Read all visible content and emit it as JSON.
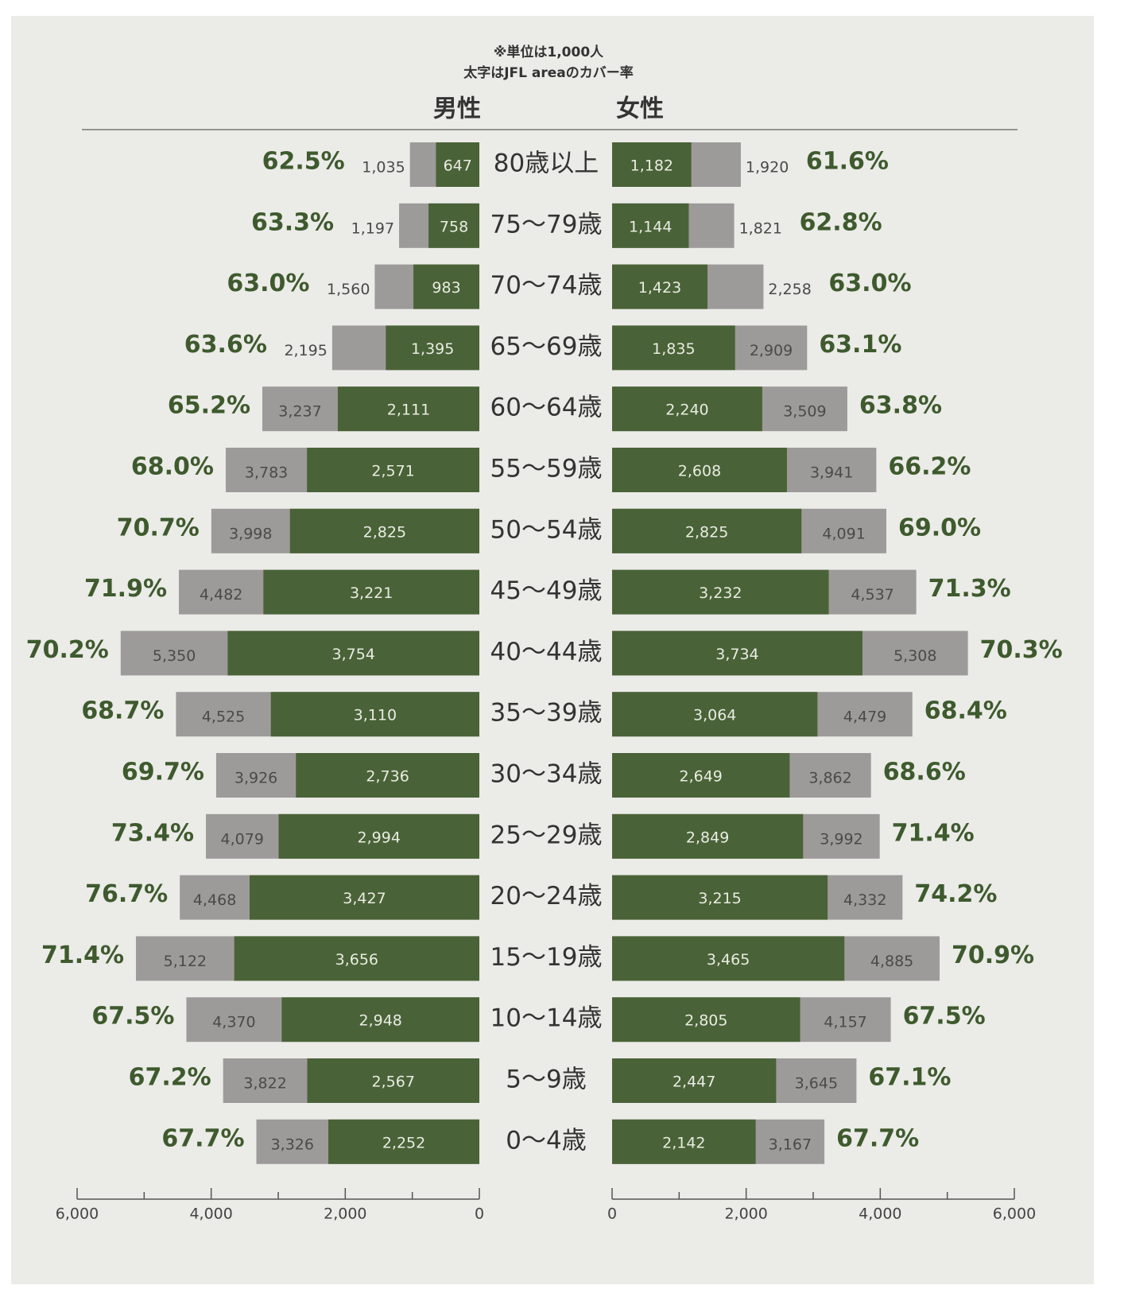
{
  "chart_data": {
    "type": "pyramid",
    "notes": [
      "※単位は1,000人",
      "太字はJFL areaのカバー率"
    ],
    "categories": [
      "80歳以上",
      "75～79歳",
      "70～74歳",
      "65～69歳",
      "60～64歳",
      "55～59歳",
      "50～54歳",
      "45～49歳",
      "40～44歳",
      "35～39歳",
      "30～34歳",
      "25～29歳",
      "20～24歳",
      "15～19歳",
      "10～14歳",
      "5～9歳",
      "0～4歳"
    ],
    "total_color": "#9d9b99",
    "cover_color": "#4a6237",
    "xlim": [
      0,
      6000
    ],
    "xticks": [
      0,
      {
        "value": 2000,
        "label": "2,000"
      },
      {
        "value": 4000,
        "label": "4,000"
      },
      {
        "value": 6000,
        "label": "6,000"
      }
    ],
    "minor_xticks": [
      1000,
      3000,
      5000
    ],
    "series": [
      {
        "name": "男性",
        "side": "left",
        "total": [
          1035,
          1197,
          1560,
          2195,
          3237,
          3783,
          3998,
          4482,
          5350,
          4525,
          3926,
          4079,
          4468,
          5122,
          4370,
          3822,
          3326
        ],
        "total_labels": [
          "1,035",
          "1,197",
          "1,560",
          "2,195",
          "3,237",
          "3,783",
          "3,998",
          "4,482",
          "5,350",
          "4,525",
          "3,926",
          "4,079",
          "4,468",
          "5,122",
          "4,370",
          "3,822",
          "3,326"
        ],
        "cover": [
          647,
          758,
          983,
          1395,
          2111,
          2571,
          2825,
          3221,
          3754,
          3110,
          2736,
          2994,
          3427,
          3656,
          2948,
          2567,
          2252
        ],
        "cover_labels": [
          "647",
          "758",
          "983",
          "1,395",
          "2,111",
          "2,571",
          "2,825",
          "3,221",
          "3,754",
          "3,110",
          "2,736",
          "2,994",
          "3,427",
          "3,656",
          "2,948",
          "2,567",
          "2,252"
        ],
        "rate": [
          62.5,
          63.3,
          63.0,
          63.6,
          65.2,
          68.0,
          70.7,
          71.9,
          70.2,
          68.7,
          69.7,
          73.4,
          76.7,
          71.4,
          67.5,
          67.2,
          67.7
        ],
        "rate_labels": [
          "62.5%",
          "63.3%",
          "63.0%",
          "63.6%",
          "65.2%",
          "68.0%",
          "70.7%",
          "71.9%",
          "70.2%",
          "68.7%",
          "69.7%",
          "73.4%",
          "76.7%",
          "71.4%",
          "67.5%",
          "67.2%",
          "67.7%"
        ]
      },
      {
        "name": "女性",
        "side": "right",
        "total": [
          1920,
          1821,
          2258,
          2909,
          3509,
          3941,
          4091,
          4537,
          5308,
          4479,
          3862,
          3992,
          4332,
          4885,
          4157,
          3645,
          3167
        ],
        "total_labels": [
          "1,920",
          "1,821",
          "2,258",
          "2,909",
          "3,509",
          "3,941",
          "4,091",
          "4,537",
          "5,308",
          "4,479",
          "3,862",
          "3,992",
          "4,332",
          "4,885",
          "4,157",
          "3,645",
          "3,167"
        ],
        "cover": [
          1182,
          1144,
          1423,
          1835,
          2240,
          2608,
          2825,
          3232,
          3734,
          3064,
          2649,
          2849,
          3215,
          3465,
          2805,
          2447,
          2142
        ],
        "cover_labels": [
          "1,182",
          "1,144",
          "1,423",
          "1,835",
          "2,240",
          "2,608",
          "2,825",
          "3,232",
          "3,734",
          "3,064",
          "2,649",
          "2,849",
          "3,215",
          "3,465",
          "2,805",
          "2,447",
          "2,142"
        ],
        "rate": [
          61.6,
          62.8,
          63.0,
          63.1,
          63.8,
          66.2,
          69.0,
          71.3,
          70.3,
          68.4,
          68.6,
          71.4,
          74.2,
          70.9,
          67.5,
          67.1,
          67.7
        ],
        "rate_labels": [
          "61.6%",
          "62.8%",
          "63.0%",
          "63.1%",
          "63.8%",
          "66.2%",
          "69.0%",
          "71.3%",
          "70.3%",
          "68.4%",
          "68.6%",
          "71.4%",
          "74.2%",
          "70.9%",
          "67.5%",
          "67.1%",
          "67.7%"
        ]
      }
    ]
  }
}
